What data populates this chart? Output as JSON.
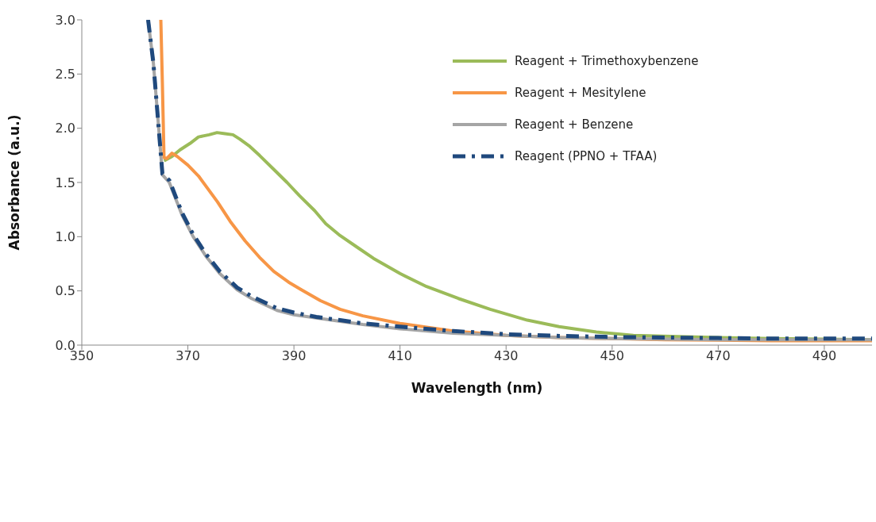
{
  "chart_data": {
    "type": "line",
    "xlabel": "Wavelength (nm)",
    "ylabel": "Absorbance (a.u.)",
    "xlim": [
      350,
      499
    ],
    "xticks": [
      350,
      370,
      390,
      410,
      430,
      450,
      470,
      490
    ],
    "ylim": [
      0,
      3
    ],
    "yticks": [
      {
        "value": 0,
        "label": "0.0"
      },
      {
        "value": 0.5,
        "label": "0.5"
      },
      {
        "value": 1,
        "label": "1.0"
      },
      {
        "value": 1.5,
        "label": "1.5"
      },
      {
        "value": 2,
        "label": "2.0"
      },
      {
        "value": 2.5,
        "label": "2.5"
      },
      {
        "value": 3,
        "label": "3.0"
      }
    ],
    "grid": false,
    "legend": "top right",
    "marker": "none",
    "series": [
      {
        "name": "Reagent + Trimethoxybenzene",
        "color": "#9bbb59",
        "line_style": "solid",
        "x": [
          365.5,
          367,
          368.5,
          370.4,
          372,
          374,
          375.5,
          377,
          378.5,
          379.8,
          381.5,
          383.5,
          386,
          388.7,
          391,
          393.9,
          396,
          398.7,
          402,
          405,
          410,
          415,
          421,
          427,
          434,
          440,
          447,
          454,
          461,
          470,
          480,
          490,
          499
        ],
        "values": [
          1.7,
          1.74,
          1.8,
          1.86,
          1.92,
          1.94,
          1.96,
          1.95,
          1.94,
          1.9,
          1.84,
          1.75,
          1.63,
          1.5,
          1.38,
          1.24,
          1.12,
          1.01,
          0.9,
          0.8,
          0.66,
          0.54,
          0.43,
          0.33,
          0.23,
          0.17,
          0.12,
          0.09,
          0.08,
          0.07,
          0.06,
          0.055,
          0.05
        ]
      },
      {
        "name": "Reagent + Mesitylene",
        "color": "#f79646",
        "line_style": "solid",
        "x": [
          364.9,
          365.2,
          365.5,
          366,
          367,
          368,
          370,
          372,
          375.6,
          378,
          380.8,
          383.5,
          386.2,
          389,
          391.4,
          395,
          398.7,
          403,
          410,
          420,
          430,
          440,
          450,
          460,
          470,
          480,
          490,
          499
        ],
        "values": [
          3.0,
          2.4,
          1.73,
          1.72,
          1.77,
          1.74,
          1.66,
          1.56,
          1.32,
          1.14,
          0.96,
          0.81,
          0.68,
          0.58,
          0.51,
          0.41,
          0.33,
          0.27,
          0.2,
          0.13,
          0.09,
          0.07,
          0.06,
          0.05,
          0.045,
          0.04,
          0.04,
          0.04
        ]
      },
      {
        "name": "Reagent + Benzene",
        "color": "#a5a5a5",
        "line_style": "solid",
        "x": [
          362.5,
          363.5,
          364.5,
          365.2,
          366.5,
          368.9,
          371,
          373.4,
          376,
          379.3,
          382,
          386.8,
          390,
          394.2,
          398.7,
          403,
          410,
          420,
          430,
          440,
          450,
          460,
          470,
          480,
          490,
          499
        ],
        "values": [
          3.0,
          2.6,
          2.0,
          1.57,
          1.5,
          1.2,
          1.0,
          0.82,
          0.66,
          0.51,
          0.43,
          0.32,
          0.28,
          0.25,
          0.22,
          0.19,
          0.15,
          0.11,
          0.09,
          0.07,
          0.06,
          0.055,
          0.05,
          0.05,
          0.05,
          0.05
        ]
      },
      {
        "name": "Reagent (PPNO + TFAA)",
        "color": "#1f497d",
        "line_style": "dashed",
        "x": [
          362.5,
          363.5,
          364.5,
          365.2,
          366.5,
          368.9,
          371,
          373.4,
          376,
          379.3,
          382,
          386.8,
          390,
          394.2,
          398.7,
          403,
          410,
          420,
          430,
          440,
          450,
          460,
          470,
          480,
          490,
          499
        ],
        "values": [
          3.0,
          2.6,
          2.0,
          1.58,
          1.52,
          1.22,
          1.02,
          0.84,
          0.68,
          0.53,
          0.45,
          0.34,
          0.3,
          0.26,
          0.23,
          0.2,
          0.17,
          0.13,
          0.1,
          0.085,
          0.075,
          0.07,
          0.065,
          0.06,
          0.06,
          0.06
        ]
      }
    ]
  }
}
